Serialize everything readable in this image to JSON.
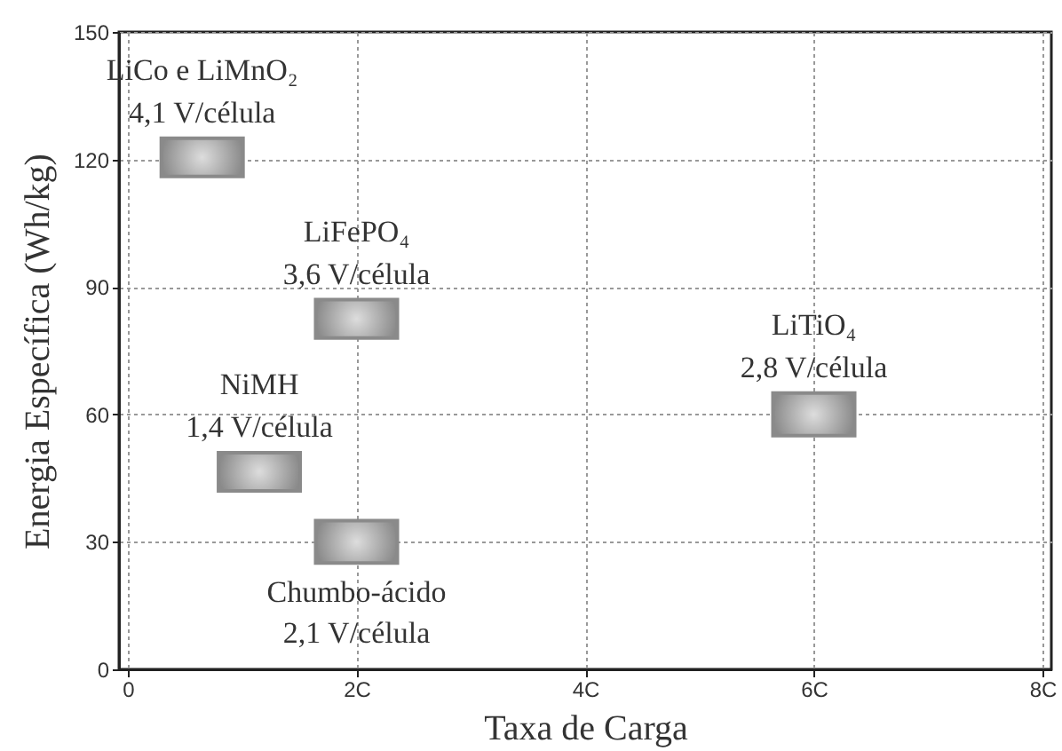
{
  "chart_data": {
    "type": "bar",
    "xlabel": "Taxa de Carga",
    "ylabel": "Energia Específica (Wh/kg)",
    "xlim": [
      0,
      8
    ],
    "xticks": [
      0,
      {
        "value": 2,
        "label": "2C"
      },
      {
        "value": 4,
        "label": "4C"
      },
      {
        "value": 6,
        "label": "6C"
      },
      {
        "value": 8,
        "label": "8C"
      }
    ],
    "ylim": [
      0,
      150
    ],
    "yticks": [
      0,
      30,
      60,
      90,
      120,
      150
    ],
    "grid": true,
    "series": [
      {
        "color": "#8a8a8a",
        "x": [
          0.65,
          1.15,
          2.0,
          6.0
        ],
        "base": [
          116,
          42,
          78,
          55
        ],
        "values": [
          9,
          9,
          9,
          10
        ]
      },
      {
        "color": "#8a8a8a",
        "x": [
          2.0
        ],
        "base": [
          25
        ],
        "values": [
          10
        ]
      }
    ],
    "annotations": [
      {
        "text": "LiCo e LiMnO₂",
        "x": 0.65,
        "y": 125
      },
      {
        "text": "4,1 V/célula",
        "x": 0.65,
        "y": 125
      },
      {
        "text": "LiFePO₄",
        "x": 2.0,
        "y": 87
      },
      {
        "text": "3,6 V/célula",
        "x": 2.0,
        "y": 87
      },
      {
        "text": "NiMH",
        "x": 1.15,
        "y": 51
      },
      {
        "text": "1,4 V/célula",
        "x": 1.15,
        "y": 51
      },
      {
        "text": "Chumbo-ácido",
        "x": 2.0,
        "y": 25
      },
      {
        "text": "2,1 V/célula",
        "x": 2.0,
        "y": 25
      },
      {
        "text": "LiTiO₄",
        "x": 6.0,
        "y": 65
      },
      {
        "text": "2,8 V/célula",
        "x": 6.0,
        "y": 65
      }
    ]
  }
}
